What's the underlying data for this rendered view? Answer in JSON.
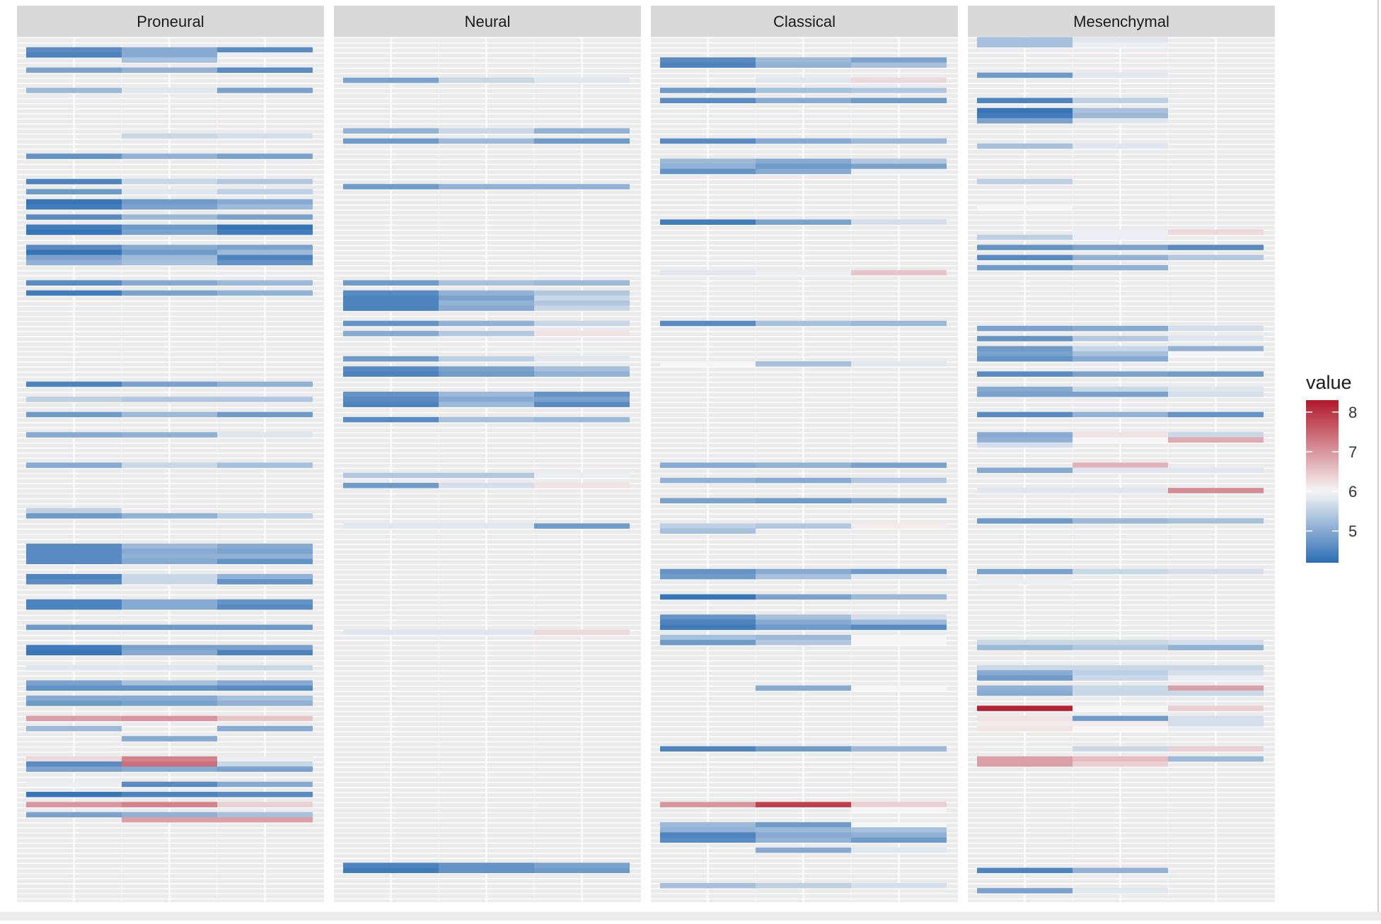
{
  "chart_data": {
    "type": "heatmap",
    "legend": {
      "title": "value",
      "ticks": [
        5,
        6,
        7,
        8
      ],
      "range": [
        4.2,
        8.3
      ],
      "colors": {
        "low": "#2c6db3",
        "mid": "#f6f6f6",
        "high": "#b2182b"
      },
      "placement": "right"
    },
    "grid": true,
    "panel_background": "#ebebeb",
    "strip_background": "#d9d9d9",
    "rows": 170,
    "columns_per_panel": 3,
    "panels": [
      {
        "name": "Proneural",
        "cells": [
          [
            2,
            4.6,
            5.0,
            4.6
          ],
          [
            3,
            4.5,
            5.0,
            5.9
          ],
          [
            4,
            null,
            5.3,
            null
          ],
          [
            6,
            4.9,
            5.1,
            4.6
          ],
          [
            10,
            5.2,
            5.8,
            4.9
          ],
          [
            19,
            null,
            5.6,
            5.7
          ],
          [
            23,
            4.7,
            5.1,
            4.9
          ],
          [
            28,
            4.5,
            5.6,
            5.4
          ],
          [
            30,
            4.8,
            5.8,
            5.5
          ],
          [
            32,
            4.3,
            4.8,
            5.0
          ],
          [
            33,
            4.4,
            4.9,
            5.2
          ],
          [
            35,
            4.6,
            5.2,
            4.9
          ],
          [
            37,
            4.4,
            4.8,
            4.3
          ],
          [
            38,
            4.3,
            4.9,
            4.4
          ],
          [
            41,
            4.6,
            5.0,
            4.9
          ],
          [
            42,
            4.3,
            4.8,
            5.2
          ],
          [
            43,
            4.9,
            5.2,
            4.5
          ],
          [
            44,
            5.1,
            5.3,
            4.7
          ],
          [
            48,
            4.6,
            5.0,
            5.2
          ],
          [
            50,
            4.4,
            4.9,
            5.1
          ],
          [
            68,
            4.5,
            4.9,
            5.1
          ],
          [
            71,
            5.5,
            5.4,
            5.4
          ],
          [
            74,
            4.8,
            5.2,
            4.8
          ],
          [
            78,
            5.0,
            5.1,
            5.8
          ],
          [
            84,
            5.0,
            5.6,
            5.3
          ],
          [
            93,
            5.5,
            null,
            null
          ],
          [
            94,
            4.8,
            5.1,
            5.5
          ],
          [
            100,
            4.6,
            5.2,
            5.0
          ],
          [
            101,
            4.6,
            5.0,
            4.9
          ],
          [
            102,
            4.6,
            5.1,
            5.1
          ],
          [
            103,
            4.6,
            5.0,
            4.7
          ],
          [
            106,
            4.5,
            5.6,
            5.1
          ],
          [
            107,
            4.6,
            5.6,
            4.7
          ],
          [
            111,
            4.5,
            5.0,
            4.7
          ],
          [
            112,
            4.5,
            5.0,
            4.6
          ],
          [
            116,
            4.8,
            4.8,
            4.8
          ],
          [
            120,
            4.4,
            4.9,
            4.9
          ],
          [
            121,
            4.3,
            5.0,
            4.5
          ],
          [
            124,
            5.8,
            5.8,
            5.6
          ],
          [
            127,
            4.9,
            5.3,
            5.0
          ],
          [
            128,
            4.7,
            4.7,
            4.6
          ],
          [
            130,
            5.0,
            5.0,
            5.3
          ],
          [
            131,
            4.8,
            4.9,
            5.1
          ],
          [
            134,
            6.9,
            7.0,
            6.5
          ],
          [
            136,
            5.2,
            null,
            5.0
          ],
          [
            138,
            null,
            5.0,
            null
          ],
          [
            142,
            6.3,
            7.2,
            5.9
          ],
          [
            143,
            4.6,
            7.4,
            5.6
          ],
          [
            144,
            4.9,
            5.0,
            4.9
          ],
          [
            147,
            5.9,
            4.6,
            5.0
          ],
          [
            149,
            4.3,
            4.5,
            4.6
          ],
          [
            151,
            7.0,
            7.2,
            6.4
          ],
          [
            153,
            4.9,
            5.1,
            5.3
          ],
          [
            154,
            null,
            6.9,
            6.9
          ]
        ]
      },
      {
        "name": "Neural",
        "cells": [
          [
            8,
            4.9,
            5.6,
            5.8
          ],
          [
            18,
            5.1,
            5.6,
            5.1
          ],
          [
            20,
            4.8,
            5.2,
            4.8
          ],
          [
            29,
            4.8,
            5.1,
            5.1
          ],
          [
            48,
            4.8,
            5.3,
            5.2
          ],
          [
            50,
            4.6,
            5.1,
            5.4
          ],
          [
            51,
            4.5,
            4.9,
            5.6
          ],
          [
            52,
            4.5,
            5.1,
            5.4
          ],
          [
            53,
            4.5,
            5.0,
            5.6
          ],
          [
            56,
            4.7,
            5.1,
            5.6
          ],
          [
            58,
            5.0,
            5.4,
            6.2
          ],
          [
            63,
            4.8,
            5.5,
            5.8
          ],
          [
            65,
            4.6,
            4.9,
            5.3
          ],
          [
            66,
            4.5,
            4.8,
            5.1
          ],
          [
            70,
            4.7,
            5.2,
            4.7
          ],
          [
            71,
            4.6,
            5.0,
            4.9
          ],
          [
            72,
            4.5,
            5.2,
            4.6
          ],
          [
            75,
            4.6,
            5.3,
            5.2
          ],
          [
            86,
            5.4,
            5.4,
            5.9
          ],
          [
            88,
            4.8,
            5.7,
            6.2
          ],
          [
            96,
            5.8,
            5.8,
            4.8
          ],
          [
            117,
            5.8,
            5.8,
            6.3
          ],
          [
            163,
            4.5,
            4.7,
            4.9
          ],
          [
            164,
            4.4,
            4.7,
            4.8
          ]
        ]
      },
      {
        "name": "Classical",
        "cells": [
          [
            4,
            4.6,
            5.2,
            4.9
          ],
          [
            5,
            4.5,
            5.1,
            5.3
          ],
          [
            8,
            null,
            5.8,
            6.3
          ],
          [
            10,
            4.8,
            5.3,
            5.4
          ],
          [
            12,
            4.6,
            5.0,
            4.8
          ],
          [
            20,
            4.6,
            5.0,
            5.2
          ],
          [
            24,
            5.2,
            5.0,
            5.4
          ],
          [
            25,
            5.1,
            4.8,
            4.9
          ],
          [
            26,
            4.7,
            5.0,
            5.9
          ],
          [
            36,
            4.4,
            4.9,
            5.7
          ],
          [
            46,
            5.8,
            5.9,
            6.5
          ],
          [
            56,
            4.6,
            5.3,
            5.2
          ],
          [
            64,
            6.0,
            5.3,
            5.8
          ],
          [
            84,
            5.0,
            5.1,
            4.9
          ],
          [
            87,
            5.1,
            5.0,
            5.4
          ],
          [
            91,
            4.9,
            4.8,
            5.0
          ],
          [
            96,
            5.5,
            5.4,
            6.1
          ],
          [
            97,
            5.3,
            null,
            null
          ],
          [
            105,
            4.7,
            5.0,
            4.8
          ],
          [
            106,
            4.8,
            5.3,
            5.8
          ],
          [
            110,
            4.3,
            4.9,
            5.2
          ],
          [
            114,
            4.7,
            5.3,
            5.7
          ],
          [
            115,
            4.5,
            5.0,
            5.2
          ],
          [
            116,
            4.4,
            4.8,
            4.6
          ],
          [
            118,
            5.3,
            5.2,
            6.0
          ],
          [
            119,
            4.8,
            5.4,
            6.0
          ],
          [
            128,
            null,
            5.0,
            6.0
          ],
          [
            140,
            4.5,
            4.8,
            5.2
          ],
          [
            151,
            7.0,
            7.9,
            6.4
          ],
          [
            152,
            null,
            null,
            6.0
          ],
          [
            155,
            5.2,
            4.8,
            6.0
          ],
          [
            156,
            5.1,
            5.2,
            5.3
          ],
          [
            157,
            4.5,
            5.0,
            5.1
          ],
          [
            158,
            4.6,
            5.1,
            4.8
          ],
          [
            160,
            null,
            5.0,
            5.8
          ],
          [
            167,
            5.3,
            5.5,
            5.7
          ]
        ]
      },
      {
        "name": "Mesenchymal",
        "cells": [
          [
            0,
            5.3,
            5.8,
            null
          ],
          [
            1,
            5.3,
            5.9,
            null
          ],
          [
            7,
            4.8,
            5.8,
            null
          ],
          [
            12,
            4.5,
            5.5,
            null
          ],
          [
            14,
            4.3,
            5.3,
            null
          ],
          [
            15,
            4.4,
            5.2,
            null
          ],
          [
            16,
            4.9,
            5.8,
            null
          ],
          [
            21,
            5.3,
            5.8,
            null
          ],
          [
            28,
            5.5,
            null,
            null
          ],
          [
            33,
            6.0,
            null,
            null
          ],
          [
            38,
            null,
            5.9,
            6.3
          ],
          [
            39,
            5.5,
            5.9,
            null
          ],
          [
            41,
            4.7,
            4.9,
            4.6
          ],
          [
            43,
            4.6,
            5.1,
            5.4
          ],
          [
            45,
            4.8,
            5.1,
            null
          ],
          [
            57,
            4.9,
            5.0,
            5.7
          ],
          [
            59,
            4.7,
            5.4,
            5.8
          ],
          [
            61,
            4.8,
            5.6,
            5.1
          ],
          [
            62,
            4.9,
            5.3,
            6.0
          ],
          [
            63,
            4.7,
            5.0,
            null
          ],
          [
            66,
            4.6,
            4.9,
            4.8
          ],
          [
            69,
            5.0,
            5.6,
            5.8
          ],
          [
            70,
            4.9,
            4.9,
            5.7
          ],
          [
            74,
            4.6,
            5.1,
            4.7
          ],
          [
            78,
            5.0,
            6.2,
            5.6
          ],
          [
            79,
            5.1,
            6.0,
            6.8
          ],
          [
            80,
            5.7,
            null,
            null
          ],
          [
            84,
            null,
            6.7,
            null
          ],
          [
            85,
            5.0,
            5.8,
            5.8
          ],
          [
            89,
            5.8,
            5.8,
            7.1
          ],
          [
            95,
            4.8,
            5.2,
            5.3
          ],
          [
            105,
            4.9,
            5.6,
            5.7
          ],
          [
            107,
            5.9,
            null,
            null
          ],
          [
            118,
            null,
            null,
            null
          ],
          [
            119,
            5.6,
            5.6,
            5.7
          ],
          [
            120,
            5.2,
            5.4,
            5.1
          ],
          [
            122,
            null,
            null,
            null
          ],
          [
            124,
            5.6,
            5.6,
            5.6
          ],
          [
            125,
            5.0,
            5.5,
            5.7
          ],
          [
            126,
            4.8,
            5.6,
            5.9
          ],
          [
            128,
            5.1,
            5.6,
            6.9
          ],
          [
            129,
            5.0,
            5.6,
            5.6
          ],
          [
            132,
            8.2,
            6.0,
            6.4
          ],
          [
            134,
            6.2,
            4.8,
            5.7
          ],
          [
            135,
            6.1,
            6.1,
            5.7
          ],
          [
            136,
            6.2,
            6.0,
            5.9
          ],
          [
            140,
            null,
            5.6,
            6.4
          ],
          [
            142,
            6.9,
            6.6,
            5.2
          ],
          [
            143,
            6.9,
            6.4,
            null
          ],
          [
            164,
            4.5,
            5.1,
            null
          ],
          [
            168,
            4.9,
            5.8,
            null
          ]
        ]
      }
    ]
  }
}
